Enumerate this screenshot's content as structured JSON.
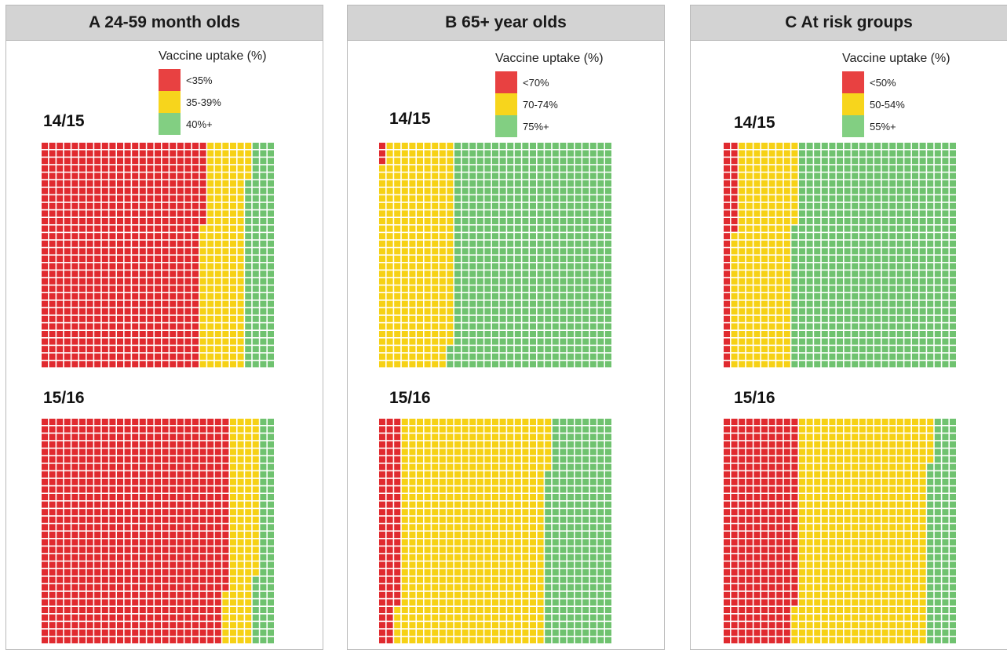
{
  "chart_data": [
    {
      "type": "waffle",
      "panel_letter": "A",
      "title": "24-59 month olds",
      "legend_title": "Vaccine uptake (%)",
      "categories": [
        "<35%",
        "35-39%",
        "40%+"
      ],
      "colors": [
        "#e02a2f",
        "#f6d115",
        "#6fc26f"
      ],
      "seasons": [
        {
          "label": "14/15",
          "values": [
            641,
            174,
            115
          ]
        },
        {
          "label": "15/16",
          "values": [
            743,
            118,
            69
          ]
        }
      ]
    },
    {
      "type": "waffle",
      "panel_letter": "B",
      "title": "65+ year olds",
      "legend_title": "Vaccine uptake (%)",
      "categories": [
        "<70%",
        "70-74%",
        "75%+"
      ],
      "colors": [
        "#e02a2f",
        "#f6d115",
        "#6fc26f"
      ],
      "seasons": [
        {
          "label": "14/15",
          "values": [
            3,
            294,
            633
          ]
        },
        {
          "label": "15/16",
          "values": [
            85,
            582,
            263
          ]
        }
      ]
    },
    {
      "type": "waffle",
      "panel_letter": "C",
      "title": "At risk groups",
      "legend_title": "Vaccine uptake (%)",
      "categories": [
        "<50%",
        "50-54%",
        "55%+"
      ],
      "colors": [
        "#e02a2f",
        "#f6d115",
        "#6fc26f"
      ],
      "seasons": [
        {
          "label": "14/15",
          "values": [
            42,
            239,
            649
          ]
        },
        {
          "label": "15/16",
          "values": [
            295,
            521,
            114
          ]
        }
      ]
    }
  ]
}
